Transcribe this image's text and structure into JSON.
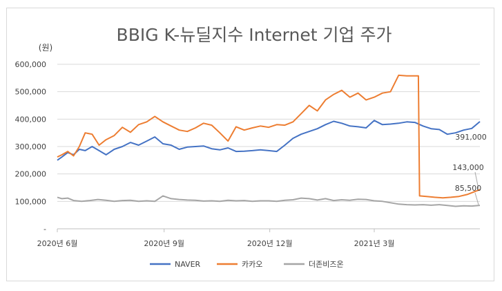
{
  "chart_data": {
    "type": "line",
    "title": "BBIG K-뉴딜지수 Internet 기업 주가",
    "y_unit": "(원)",
    "ylim": [
      0,
      600000
    ],
    "y_ticks": [
      "-",
      "100,000",
      "200,000",
      "300,000",
      "400,000",
      "500,000",
      "600,000"
    ],
    "x_ticks": [
      "2020년 6월",
      "2020년 9월",
      "2020년 12월",
      "2021년 3월"
    ],
    "x_tick_dates": [
      "2020-06-01",
      "2020-09-01",
      "2020-12-01",
      "2021-03-01"
    ],
    "x_range": [
      "2020-06-01",
      "2021-05-31"
    ],
    "grid": true,
    "legend_position": "bottom",
    "series": [
      {
        "name": "NAVER",
        "color": "#4472C4",
        "dates": [
          "2020-06-01",
          "2020-06-05",
          "2020-06-10",
          "2020-06-15",
          "2020-06-20",
          "2020-06-25",
          "2020-07-01",
          "2020-07-07",
          "2020-07-13",
          "2020-07-20",
          "2020-07-27",
          "2020-08-03",
          "2020-08-10",
          "2020-08-17",
          "2020-08-24",
          "2020-08-31",
          "2020-09-07",
          "2020-09-14",
          "2020-09-21",
          "2020-09-28",
          "2020-10-05",
          "2020-10-12",
          "2020-10-19",
          "2020-10-26",
          "2020-11-02",
          "2020-11-09",
          "2020-11-16",
          "2020-11-23",
          "2020-11-30",
          "2020-12-07",
          "2020-12-14",
          "2020-12-21",
          "2020-12-28",
          "2021-01-04",
          "2021-01-11",
          "2021-01-18",
          "2021-01-25",
          "2021-02-01",
          "2021-02-08",
          "2021-02-15",
          "2021-02-22",
          "2021-03-01",
          "2021-03-08",
          "2021-03-15",
          "2021-03-22",
          "2021-03-29",
          "2021-04-05",
          "2021-04-12",
          "2021-04-19",
          "2021-04-26",
          "2021-05-03",
          "2021-05-10",
          "2021-05-17",
          "2021-05-24",
          "2021-05-31"
        ],
        "values": [
          250000,
          262000,
          278000,
          270000,
          290000,
          285000,
          300000,
          285000,
          270000,
          290000,
          300000,
          315000,
          305000,
          320000,
          335000,
          310000,
          305000,
          290000,
          298000,
          300000,
          302000,
          292000,
          288000,
          295000,
          282000,
          283000,
          285000,
          288000,
          285000,
          282000,
          305000,
          330000,
          345000,
          355000,
          365000,
          380000,
          392000,
          385000,
          375000,
          372000,
          368000,
          395000,
          380000,
          382000,
          385000,
          390000,
          388000,
          375000,
          365000,
          362000,
          345000,
          350000,
          360000,
          366000,
          391000
        ]
      },
      {
        "name": "카카오",
        "color": "#ED7D31",
        "dates": [
          "2020-06-01",
          "2020-06-05",
          "2020-06-10",
          "2020-06-15",
          "2020-06-20",
          "2020-06-25",
          "2020-07-01",
          "2020-07-07",
          "2020-07-13",
          "2020-07-20",
          "2020-07-27",
          "2020-08-03",
          "2020-08-10",
          "2020-08-17",
          "2020-08-24",
          "2020-08-31",
          "2020-09-07",
          "2020-09-14",
          "2020-09-21",
          "2020-09-28",
          "2020-10-05",
          "2020-10-12",
          "2020-10-19",
          "2020-10-26",
          "2020-11-02",
          "2020-11-09",
          "2020-11-16",
          "2020-11-23",
          "2020-11-30",
          "2020-12-07",
          "2020-12-14",
          "2020-12-21",
          "2020-12-28",
          "2021-01-04",
          "2021-01-11",
          "2021-01-18",
          "2021-01-25",
          "2021-02-01",
          "2021-02-08",
          "2021-02-15",
          "2021-02-22",
          "2021-03-01",
          "2021-03-08",
          "2021-03-15",
          "2021-03-22",
          "2021-03-29",
          "2021-04-08",
          "2021-04-09",
          "2021-04-15",
          "2021-04-22",
          "2021-04-29",
          "2021-05-06",
          "2021-05-13",
          "2021-05-20",
          "2021-05-31"
        ],
        "values": [
          262000,
          270000,
          282000,
          266000,
          300000,
          350000,
          345000,
          305000,
          325000,
          340000,
          370000,
          352000,
          380000,
          390000,
          410000,
          390000,
          375000,
          360000,
          355000,
          368000,
          385000,
          378000,
          350000,
          320000,
          372000,
          360000,
          368000,
          375000,
          370000,
          380000,
          378000,
          390000,
          420000,
          450000,
          430000,
          470000,
          490000,
          505000,
          480000,
          495000,
          470000,
          480000,
          495000,
          500000,
          560000,
          558000,
          558000,
          120000,
          118000,
          115000,
          113000,
          115000,
          118000,
          125000,
          143000
        ]
      },
      {
        "name": "더존비즈온",
        "color": "#A5A5A5",
        "dates": [
          "2020-06-01",
          "2020-06-05",
          "2020-06-10",
          "2020-06-15",
          "2020-06-22",
          "2020-06-29",
          "2020-07-06",
          "2020-07-13",
          "2020-07-20",
          "2020-07-27",
          "2020-08-03",
          "2020-08-10",
          "2020-08-17",
          "2020-08-24",
          "2020-08-31",
          "2020-09-07",
          "2020-09-14",
          "2020-09-21",
          "2020-09-28",
          "2020-10-05",
          "2020-10-12",
          "2020-10-19",
          "2020-10-26",
          "2020-11-02",
          "2020-11-09",
          "2020-11-16",
          "2020-11-23",
          "2020-11-30",
          "2020-12-07",
          "2020-12-14",
          "2020-12-21",
          "2020-12-28",
          "2021-01-04",
          "2021-01-11",
          "2021-01-18",
          "2021-01-25",
          "2021-02-01",
          "2021-02-08",
          "2021-02-15",
          "2021-02-22",
          "2021-03-01",
          "2021-03-08",
          "2021-03-15",
          "2021-03-22",
          "2021-03-29",
          "2021-04-05",
          "2021-04-12",
          "2021-04-19",
          "2021-04-26",
          "2021-05-03",
          "2021-05-10",
          "2021-05-17",
          "2021-05-24",
          "2021-05-31"
        ],
        "values": [
          115000,
          110000,
          112000,
          103000,
          100000,
          103000,
          107000,
          104000,
          100000,
          103000,
          104000,
          100000,
          102000,
          100000,
          120000,
          110000,
          107000,
          105000,
          104000,
          101000,
          102000,
          100000,
          104000,
          102000,
          103000,
          100000,
          102000,
          102000,
          100000,
          104000,
          106000,
          112000,
          110000,
          105000,
          110000,
          103000,
          106000,
          104000,
          108000,
          107000,
          102000,
          100000,
          95000,
          90000,
          88000,
          87000,
          88000,
          86000,
          88000,
          85000,
          82000,
          84000,
          83000,
          85500
        ]
      }
    ],
    "annotations": [
      {
        "series": "NAVER",
        "text": "391,000"
      },
      {
        "series": "카카오",
        "text": "143,000"
      },
      {
        "series": "더존비즈온",
        "text": "85,500"
      }
    ]
  }
}
